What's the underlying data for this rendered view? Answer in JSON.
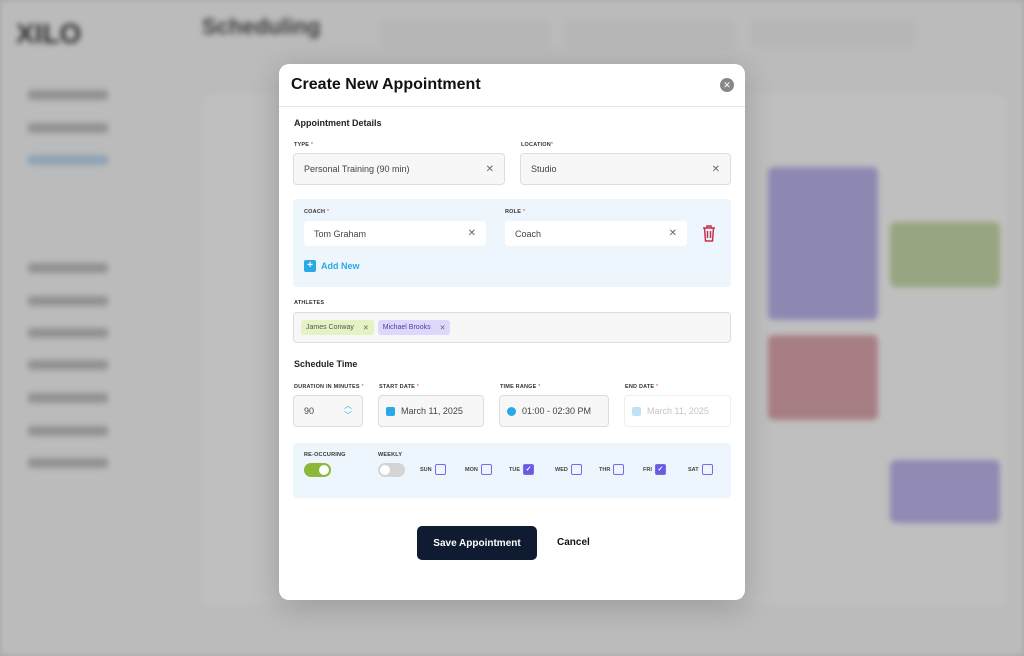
{
  "background": {
    "logo": "XILO",
    "page_title": "Scheduling"
  },
  "modal": {
    "title": "Create New Appointment",
    "close_icon": "close-icon",
    "details_heading": "Appointment Details",
    "type": {
      "label": "TYPE",
      "value": "Personal Training (90 min)"
    },
    "location": {
      "label": "LOCATION",
      "value": "Studio"
    },
    "coach": {
      "label": "COACH",
      "value": "Tom Graham"
    },
    "role": {
      "label": "ROLE",
      "value": "Coach"
    },
    "add_new": "Add New",
    "athletes": {
      "label": "ATHLETES",
      "items": [
        {
          "name": "James Conway",
          "color": "#e4f2c4"
        },
        {
          "name": "Michael Brooks",
          "color": "#ddd8fb"
        }
      ]
    },
    "schedule_heading": "Schedule Time",
    "duration": {
      "label": "DURATION IN MINUTES",
      "value": "90"
    },
    "start_date": {
      "label": "START DATE",
      "value": "March 11, 2025"
    },
    "time_range": {
      "label": "TIME RANGE",
      "value": "01:00 - 02:30 PM"
    },
    "end_date": {
      "label": "END DATE",
      "value": "March 11, 2025"
    },
    "recurring": {
      "label": "RE-OCCURING",
      "on": true
    },
    "weekly": {
      "label": "WEEKLY",
      "on": false
    },
    "days": [
      {
        "d": "SUN",
        "on": false
      },
      {
        "d": "MON",
        "on": false
      },
      {
        "d": "TUE",
        "on": true
      },
      {
        "d": "WED",
        "on": false
      },
      {
        "d": "THR",
        "on": false
      },
      {
        "d": "FRI",
        "on": true
      },
      {
        "d": "SAT",
        "on": false
      }
    ],
    "save_label": "Save Appointment",
    "cancel_label": "Cancel",
    "colors": {
      "primary": "#0f1b30",
      "accent": "#2aa8e8",
      "toggle_on": "#8cb83a",
      "checkbox": "#6a5ae0",
      "delete": "#c8314a"
    }
  }
}
